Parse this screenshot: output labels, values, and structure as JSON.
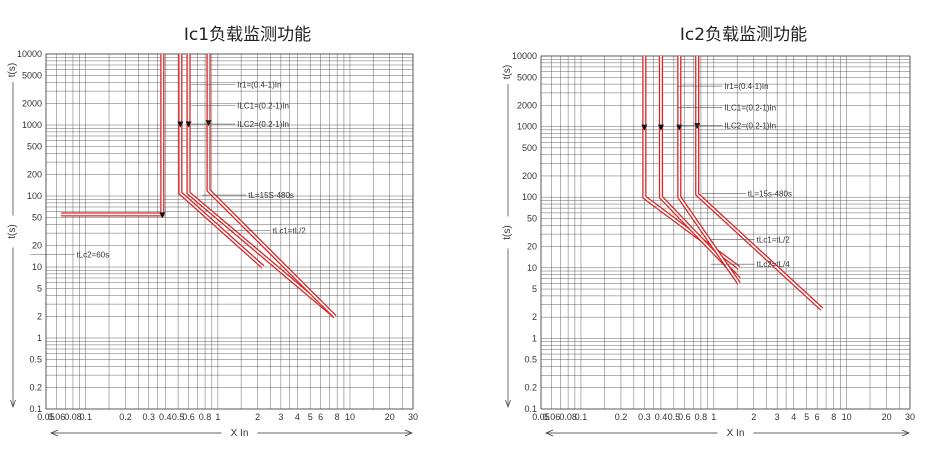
{
  "chart_data": [
    {
      "type": "line",
      "title": "Ic1负载监测功能",
      "xlabel": "X In",
      "ylabel": "t(s)",
      "xscale": "log",
      "yscale": "log",
      "xlim": [
        0.05,
        30
      ],
      "ylim": [
        0.1,
        10000
      ],
      "x_ticks": [
        "0.05",
        "0.06",
        "0.08",
        "0.1",
        "0.2",
        "0.3",
        "0.4",
        "0.5",
        "0.6",
        "0.8",
        "1",
        "2",
        "3",
        "4",
        "5",
        "6",
        "8",
        "10",
        "20",
        "30"
      ],
      "y_ticks": [
        "0.1",
        "0.2",
        "0.5",
        "1",
        "2",
        "5",
        "10",
        "20",
        "50",
        "100",
        "200",
        "500",
        "1000",
        "2000",
        "5000",
        "10000"
      ],
      "grid": true,
      "series": [
        {
          "points": [
            [
              0.065,
              55
            ],
            [
              0.38,
              55
            ],
            [
              0.38,
              10000
            ]
          ]
        },
        {
          "points": [
            [
              0.52,
              10000
            ],
            [
              0.52,
              110
            ],
            [
              2.2,
              10
            ]
          ]
        },
        {
          "points": [
            [
              0.6,
              10000
            ],
            [
              0.6,
              110
            ],
            [
              7.7,
              2
            ]
          ]
        },
        {
          "points": [
            [
              0.85,
              10000
            ],
            [
              0.85,
              120
            ],
            [
              7.7,
              2
            ]
          ]
        }
      ],
      "annotations": [
        {
          "text": "Ir1=(0.4-1)In",
          "x": 1.4,
          "y": 4000
        },
        {
          "text": "ILC1=(0.2-1)In",
          "x": 1.4,
          "y": 2000
        },
        {
          "text": "ILC2=(0.2-1)In",
          "x": 1.4,
          "y": 1100
        },
        {
          "text": "tL=15S-480s",
          "x": 1.7,
          "y": 110
        },
        {
          "text": "tLc1=tL/2",
          "x": 2.6,
          "y": 35
        },
        {
          "text": "tLc2=60s",
          "x": 0.085,
          "y": 16
        }
      ]
    },
    {
      "type": "line",
      "title": "Ic2负载监测功能",
      "xlabel": "X In",
      "ylabel": "t(s)",
      "xscale": "log",
      "yscale": "log",
      "xlim": [
        0.05,
        30
      ],
      "ylim": [
        0.1,
        10000
      ],
      "x_ticks": [
        "0.05",
        "0.06",
        "0.08",
        "0.1",
        "0.2",
        "0.3",
        "0.4",
        "0.5",
        "0.6",
        "0.8",
        "1",
        "2",
        "3",
        "4",
        "5",
        "6",
        "8",
        "10",
        "20",
        "30"
      ],
      "y_ticks": [
        "0.1",
        "0.2",
        "0.5",
        "1",
        "2",
        "5",
        "10",
        "20",
        "50",
        "100",
        "200",
        "500",
        "1000",
        "2000",
        "5000",
        "10000"
      ],
      "grid": true,
      "series": [
        {
          "points": [
            [
              0.3,
              10000
            ],
            [
              0.3,
              100
            ],
            [
              1.55,
              10
            ]
          ]
        },
        {
          "points": [
            [
              0.4,
              10000
            ],
            [
              0.4,
              100
            ],
            [
              1.55,
              7
            ]
          ]
        },
        {
          "points": [
            [
              0.55,
              10000
            ],
            [
              0.55,
              100
            ],
            [
              1.55,
              6
            ]
          ]
        },
        {
          "points": [
            [
              0.75,
              10000
            ],
            [
              0.75,
              110
            ],
            [
              6.5,
              2.6
            ]
          ]
        }
      ],
      "annotations": [
        {
          "text": "Ir1=(0.4-1)In",
          "x": 1.2,
          "y": 4000
        },
        {
          "text": "ILC1=(0.2-1)In",
          "x": 1.2,
          "y": 2000
        },
        {
          "text": "ILC2=(0.2-1)In",
          "x": 1.2,
          "y": 1100
        },
        {
          "text": "tL=15s-480s",
          "x": 1.8,
          "y": 120
        },
        {
          "text": "tLc1=tL/2",
          "x": 2.1,
          "y": 27
        },
        {
          "text": "tLc2=tL/4",
          "x": 2.1,
          "y": 12
        }
      ]
    }
  ]
}
